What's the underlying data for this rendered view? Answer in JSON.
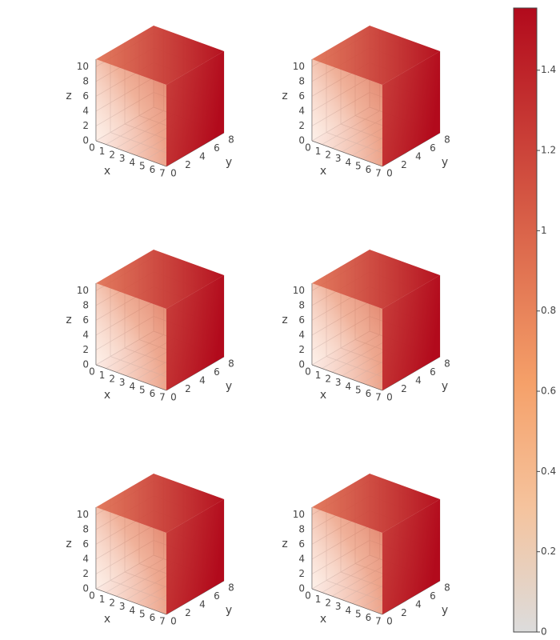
{
  "chart_data": [
    {
      "type": "volume",
      "xaxis_title": "x",
      "yaxis_title": "y",
      "zaxis_title": "z",
      "xlim": [
        0,
        7
      ],
      "ylim": [
        0,
        8
      ],
      "zlim": [
        0,
        11
      ],
      "xticks": [
        0,
        1,
        2,
        3,
        4,
        5,
        6,
        7
      ],
      "yticks": [
        0,
        2,
        4,
        6,
        8
      ],
      "zticks": [
        0,
        2,
        4,
        6,
        8,
        10
      ]
    },
    {
      "type": "volume",
      "xaxis_title": "x",
      "yaxis_title": "y",
      "zaxis_title": "z",
      "xlim": [
        0,
        7
      ],
      "ylim": [
        0,
        8
      ],
      "zlim": [
        0,
        11
      ],
      "xticks": [
        0,
        1,
        2,
        3,
        4,
        5,
        6,
        7
      ],
      "yticks": [
        0,
        2,
        4,
        6,
        8
      ],
      "zticks": [
        0,
        2,
        4,
        6,
        8,
        10
      ]
    },
    {
      "type": "volume",
      "xaxis_title": "x",
      "yaxis_title": "y",
      "zaxis_title": "z",
      "xlim": [
        0,
        7
      ],
      "ylim": [
        0,
        8
      ],
      "zlim": [
        0,
        11
      ],
      "xticks": [
        0,
        1,
        2,
        3,
        4,
        5,
        6,
        7
      ],
      "yticks": [
        0,
        2,
        4,
        6,
        8
      ],
      "zticks": [
        0,
        2,
        4,
        6,
        8,
        10
      ]
    },
    {
      "type": "volume",
      "xaxis_title": "x",
      "yaxis_title": "y",
      "zaxis_title": "z",
      "xlim": [
        0,
        7
      ],
      "ylim": [
        0,
        8
      ],
      "zlim": [
        0,
        11
      ],
      "xticks": [
        0,
        1,
        2,
        3,
        4,
        5,
        6,
        7
      ],
      "yticks": [
        0,
        2,
        4,
        6,
        8
      ],
      "zticks": [
        0,
        2,
        4,
        6,
        8,
        10
      ]
    },
    {
      "type": "volume",
      "xaxis_title": "x",
      "yaxis_title": "y",
      "zaxis_title": "z",
      "xlim": [
        0,
        7
      ],
      "ylim": [
        0,
        8
      ],
      "zlim": [
        0,
        11
      ],
      "xticks": [
        0,
        1,
        2,
        3,
        4,
        5,
        6,
        7
      ],
      "yticks": [
        0,
        2,
        4,
        6,
        8
      ],
      "zticks": [
        0,
        2,
        4,
        6,
        8,
        10
      ]
    },
    {
      "type": "volume",
      "xaxis_title": "x",
      "yaxis_title": "y",
      "zaxis_title": "z",
      "xlim": [
        0,
        7
      ],
      "ylim": [
        0,
        8
      ],
      "zlim": [
        0,
        11
      ],
      "xticks": [
        0,
        1,
        2,
        3,
        4,
        5,
        6,
        7
      ],
      "yticks": [
        0,
        2,
        4,
        6,
        8
      ],
      "zticks": [
        0,
        2,
        4,
        6,
        8,
        10
      ]
    }
  ],
  "colorbar": {
    "cmin": 0,
    "cmax": 1.555,
    "ticks": [
      0,
      0.2,
      0.4,
      0.6,
      0.8,
      1,
      1.2,
      1.4
    ],
    "colorscale": [
      [
        0,
        "#dcdcdc"
      ],
      [
        0.2,
        "#f5c39d"
      ],
      [
        0.4,
        "#f5a069"
      ],
      [
        1,
        "#b20a1c"
      ]
    ]
  }
}
